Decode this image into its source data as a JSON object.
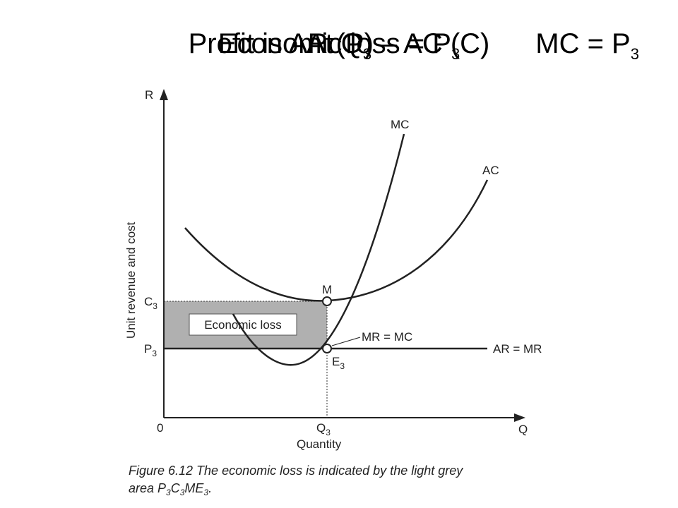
{
  "slide": {
    "titles": [
      {
        "text": "Profit is AR (P) – AC (C)",
        "sub": ""
      },
      {
        "text": "At Q",
        "sub": "3"
      },
      {
        "text": "Economic loss = P",
        "sub": "3"
      },
      {
        "text": "MC = P",
        "sub": "3"
      }
    ],
    "figure": {
      "y_axis": "R",
      "x_axis": "Q",
      "origin": "0",
      "mc": "MC",
      "ac": "AC",
      "m": "M",
      "c3": {
        "main": "C",
        "sub": "3"
      },
      "p3": {
        "main": "P",
        "sub": "3"
      },
      "e3": {
        "main": "E",
        "sub": "3"
      },
      "q3": {
        "main": "Q",
        "sub": "3"
      },
      "mr_mc": "MR = MC",
      "ar_mr": "AR = MR",
      "loss": "Economic loss",
      "x_label": "Quantity",
      "y_label": "Unit revenue and cost",
      "caption_line1": "Figure 6.12 The economic loss is indicated by the light grey",
      "caption_line2": "area ",
      "caption_area": [
        {
          "main": "P",
          "sub": "3"
        },
        {
          "main": "C",
          "sub": "3"
        },
        {
          "main": "ME",
          "sub": "3"
        }
      ],
      "caption_end": "."
    }
  }
}
